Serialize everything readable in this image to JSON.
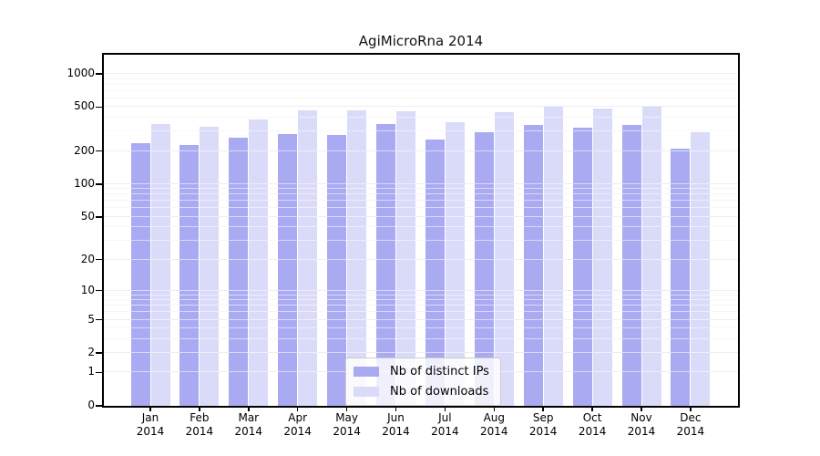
{
  "title": "AgiMicroRna 2014",
  "colors": {
    "distinct_ips_bar": "#aaaaf2",
    "downloads_bar": "#dadaf9",
    "grid_major": "#d9d9d9",
    "grid_minor": "#efefef",
    "grid_over_bars": "rgba(255,255,255,0.55)",
    "axis": "#000000",
    "legend_border": "#cccccc"
  },
  "chart_data": {
    "type": "bar",
    "title": "AgiMicroRna 2014",
    "categories": [
      "Jan 2014",
      "Feb 2014",
      "Mar 2014",
      "Apr 2014",
      "May 2014",
      "Jun 2014",
      "Jul 2014",
      "Aug 2014",
      "Sep 2014",
      "Oct 2014",
      "Nov 2014",
      "Dec 2014"
    ],
    "series": [
      {
        "name": "Nb of distinct IPs",
        "color": "#aaaaf2",
        "values": [
          235,
          226,
          264,
          286,
          282,
          354,
          254,
          296,
          342,
          323,
          347,
          209
        ]
      },
      {
        "name": "Nb of downloads",
        "color": "#dadaf9",
        "values": [
          350,
          330,
          385,
          466,
          472,
          459,
          365,
          448,
          516,
          485,
          500,
          295
        ]
      }
    ],
    "xlabel": "",
    "ylabel": "",
    "y_scale": "log10(value+1)",
    "ylim": [
      0,
      1490
    ],
    "yticks": [
      1000,
      500,
      200,
      100,
      50,
      20,
      10,
      5,
      2,
      1,
      0
    ],
    "y_minor_gridlines": [
      3,
      4,
      6,
      7,
      8,
      9,
      30,
      40,
      60,
      70,
      80,
      90,
      300,
      400,
      600,
      700,
      800,
      900
    ],
    "grid": true,
    "legend_position": "lower center"
  }
}
